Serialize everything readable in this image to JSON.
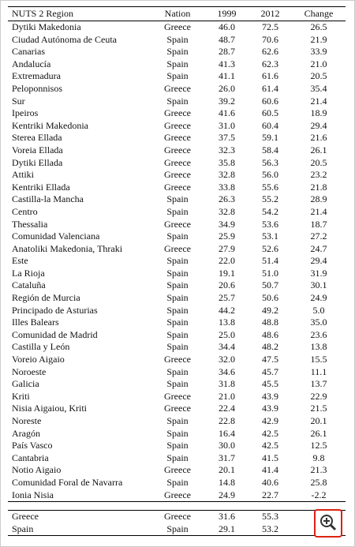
{
  "table": {
    "header": [
      "NUTS 2 Region",
      "Nation",
      "1999",
      "2012",
      "Change"
    ],
    "rows": [
      [
        "Dytiki Makedonia",
        "Greece",
        "46.0",
        "72.5",
        "26.5"
      ],
      [
        "Ciudad Autónoma de Ceuta",
        "Spain",
        "48.7",
        "70.6",
        "21.9"
      ],
      [
        "Canarias",
        "Spain",
        "28.7",
        "62.6",
        "33.9"
      ],
      [
        "Andalucía",
        "Spain",
        "41.3",
        "62.3",
        "21.0"
      ],
      [
        "Extremadura",
        "Spain",
        "41.1",
        "61.6",
        "20.5"
      ],
      [
        "Peloponnisos",
        "Greece",
        "26.0",
        "61.4",
        "35.4"
      ],
      [
        "Sur",
        "Spain",
        "39.2",
        "60.6",
        "21.4"
      ],
      [
        "Ipeiros",
        "Greece",
        "41.6",
        "60.5",
        "18.9"
      ],
      [
        "Kentriki Makedonia",
        "Greece",
        "31.0",
        "60.4",
        "29.4"
      ],
      [
        "Sterea Ellada",
        "Greece",
        "37.5",
        "59.1",
        "21.6"
      ],
      [
        "Voreia Ellada",
        "Greece",
        "32.3",
        "58.4",
        "26.1"
      ],
      [
        "Dytiki Ellada",
        "Greece",
        "35.8",
        "56.3",
        "20.5"
      ],
      [
        "Attiki",
        "Greece",
        "32.8",
        "56.0",
        "23.2"
      ],
      [
        "Kentriki Ellada",
        "Greece",
        "33.8",
        "55.6",
        "21.8"
      ],
      [
        "Castilla-la Mancha",
        "Spain",
        "26.3",
        "55.2",
        "28.9"
      ],
      [
        "Centro",
        "Spain",
        "32.8",
        "54.2",
        "21.4"
      ],
      [
        "Thessalia",
        "Greece",
        "34.9",
        "53.6",
        "18.7"
      ],
      [
        "Comunidad Valenciana",
        "Spain",
        "25.9",
        "53.1",
        "27.2"
      ],
      [
        "Anatoliki Makedonia, Thraki",
        "Greece",
        "27.9",
        "52.6",
        "24.7"
      ],
      [
        "Este",
        "Spain",
        "22.0",
        "51.4",
        "29.4"
      ],
      [
        "La Rioja",
        "Spain",
        "19.1",
        "51.0",
        "31.9"
      ],
      [
        "Cataluña",
        "Spain",
        "20.6",
        "50.7",
        "30.1"
      ],
      [
        "Región de Murcia",
        "Spain",
        "25.7",
        "50.6",
        "24.9"
      ],
      [
        "Principado de Asturias",
        "Spain",
        "44.2",
        "49.2",
        "5.0"
      ],
      [
        "Illes Balears",
        "Spain",
        "13.8",
        "48.8",
        "35.0"
      ],
      [
        "Comunidad de Madrid",
        "Spain",
        "25.0",
        "48.6",
        "23.6"
      ],
      [
        "Castilla y León",
        "Spain",
        "34.4",
        "48.2",
        "13.8"
      ],
      [
        "Voreio Aigaio",
        "Greece",
        "32.0",
        "47.5",
        "15.5"
      ],
      [
        "Noroeste",
        "Spain",
        "34.6",
        "45.7",
        "11.1"
      ],
      [
        "Galicia",
        "Spain",
        "31.8",
        "45.5",
        "13.7"
      ],
      [
        "Kriti",
        "Greece",
        "21.0",
        "43.9",
        "22.9"
      ],
      [
        "Nisia Aigaiou, Kriti",
        "Greece",
        "22.4",
        "43.9",
        "21.5"
      ],
      [
        "Noreste",
        "Spain",
        "22.8",
        "42.9",
        "20.1"
      ],
      [
        "Aragón",
        "Spain",
        "16.4",
        "42.5",
        "26.1"
      ],
      [
        "País Vasco",
        "Spain",
        "30.0",
        "42.5",
        "12.5"
      ],
      [
        "Cantabria",
        "Spain",
        "31.7",
        "41.5",
        "9.8"
      ],
      [
        "Notio Aigaio",
        "Greece",
        "20.1",
        "41.4",
        "21.3"
      ],
      [
        "Comunidad Foral de Navarra",
        "Spain",
        "14.8",
        "40.6",
        "25.8"
      ],
      [
        "Ionia Nisia",
        "Greece",
        "24.9",
        "22.7",
        "-2.2"
      ]
    ],
    "summary": [
      [
        "Greece",
        "Greece",
        "31.6",
        "55.3"
      ],
      [
        "Spain",
        "Spain",
        "29.1",
        "53.2"
      ]
    ]
  }
}
